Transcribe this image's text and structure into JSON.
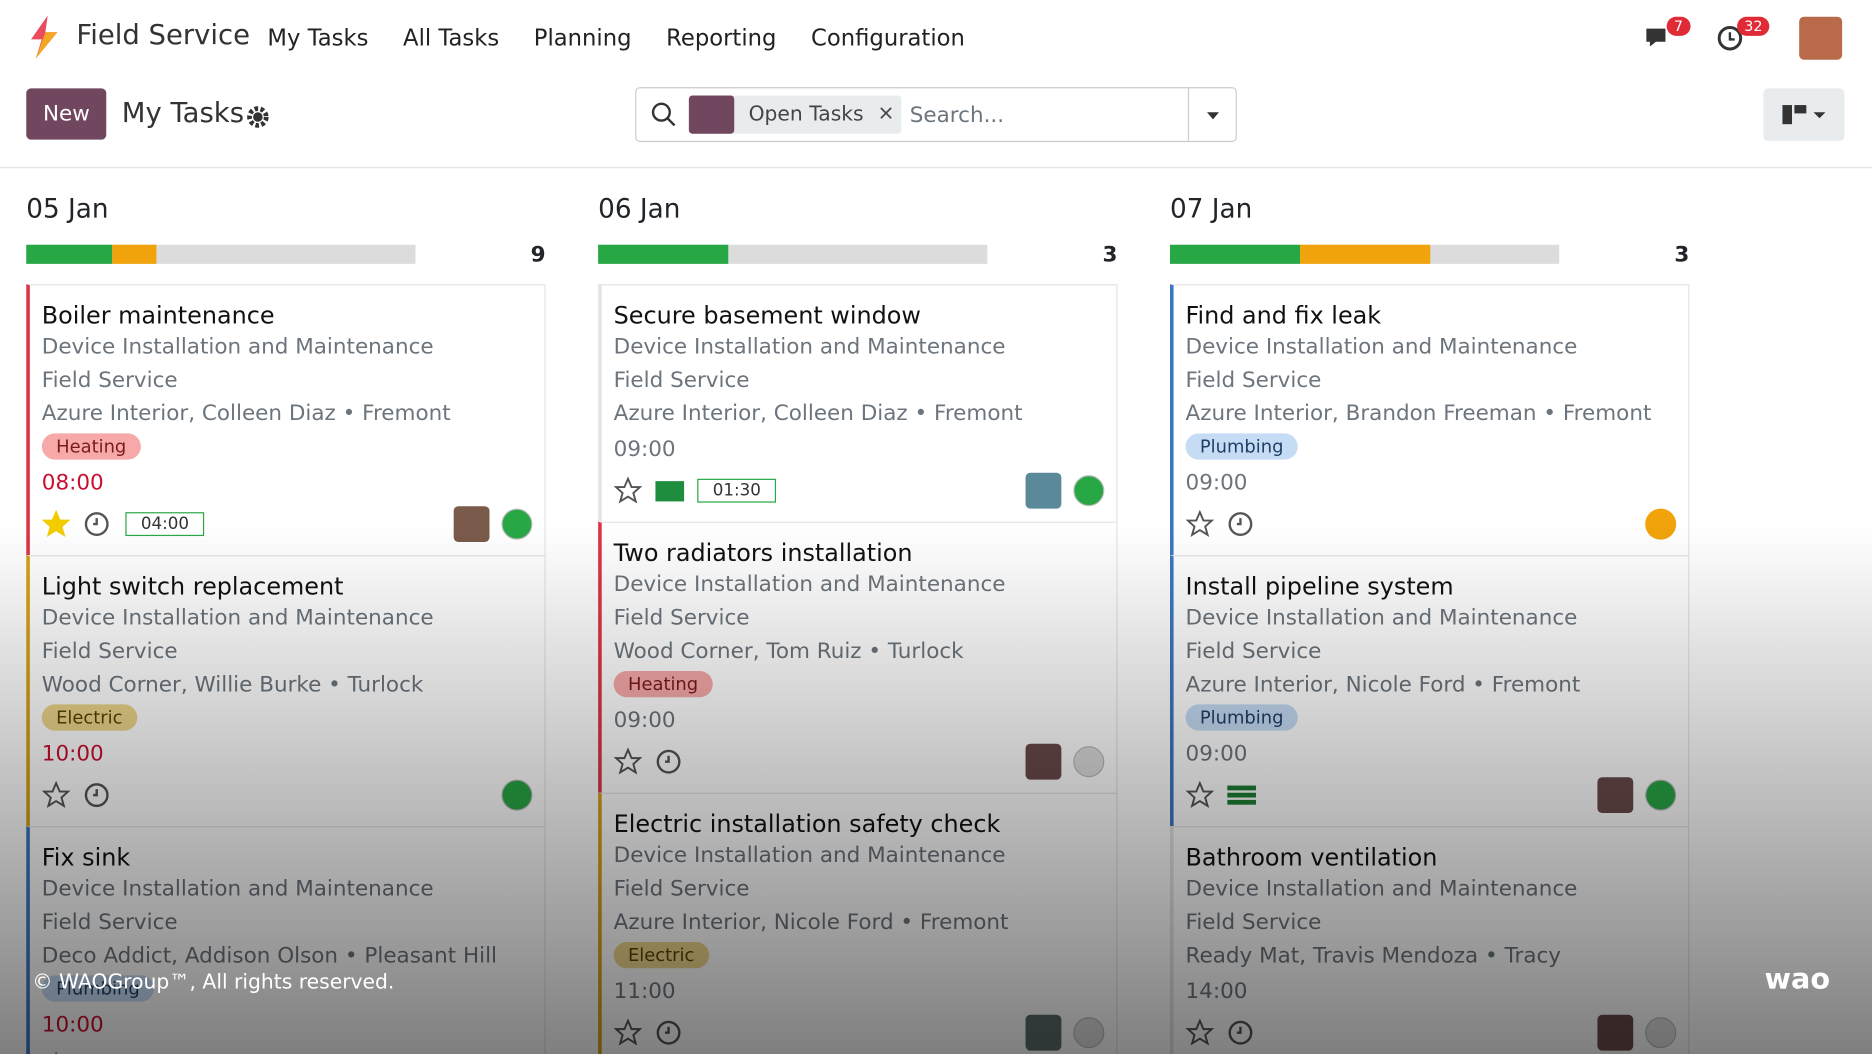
{
  "header": {
    "app": "Field Service",
    "menu": [
      "My Tasks",
      "All Tasks",
      "Planning",
      "Reporting",
      "Configuration"
    ],
    "messages_badge": 7,
    "activities_badge": 32
  },
  "control_panel": {
    "new_button": "New",
    "breadcrumb": "My Tasks",
    "facet": "Open Tasks",
    "search_placeholder": "Search..."
  },
  "columns": [
    {
      "title": "05 Jan",
      "count": 9,
      "cards": [
        {
          "title": "Boiler maintenance",
          "project": "Device Installation and Maintenance",
          "company": "Field Service",
          "customer": "Azure Interior, Colleen Diaz • Fremont",
          "tag": "Heating",
          "time": "08:00",
          "timer": "04:00"
        },
        {
          "title": "Light switch replacement",
          "project": "Device Installation and Maintenance",
          "company": "Field Service",
          "customer": "Wood Corner, Willie Burke • Turlock",
          "tag": "Electric",
          "time": "10:00"
        },
        {
          "title": "Fix sink",
          "project": "Device Installation and Maintenance",
          "company": "Field Service",
          "customer": "Deco Addict, Addison Olson • Pleasant Hill",
          "tag": "Plumbing",
          "time": "10:00"
        }
      ]
    },
    {
      "title": "06 Jan",
      "count": 3,
      "cards": [
        {
          "title": "Secure basement window",
          "project": "Device Installation and Maintenance",
          "company": "Field Service",
          "customer": "Azure Interior, Colleen Diaz • Fremont",
          "time": "09:00",
          "timer": "01:30"
        },
        {
          "title": "Two radiators installation",
          "project": "Device Installation and Maintenance",
          "company": "Field Service",
          "customer": "Wood Corner, Tom Ruiz • Turlock",
          "tag": "Heating",
          "time": "09:00"
        },
        {
          "title": "Electric installation safety check",
          "project": "Device Installation and Maintenance",
          "company": "Field Service",
          "customer": "Azure Interior, Nicole Ford • Fremont",
          "tag": "Electric",
          "time": "11:00"
        }
      ]
    },
    {
      "title": "07 Jan",
      "count": 3,
      "cards": [
        {
          "title": "Find and fix leak",
          "project": "Device Installation and Maintenance",
          "company": "Field Service",
          "customer": "Azure Interior, Brandon Freeman • Fremont",
          "tag": "Plumbing",
          "time": "09:00"
        },
        {
          "title": "Install pipeline system",
          "project": "Device Installation and Maintenance",
          "company": "Field Service",
          "customer": "Azure Interior, Nicole Ford • Fremont",
          "tag": "Plumbing",
          "time": "09:00"
        },
        {
          "title": "Bathroom ventilation",
          "project": "Device Installation and Maintenance",
          "company": "Field Service",
          "customer": "Ready Mat, Travis Mendoza • Tracy",
          "time": "14:00"
        }
      ]
    }
  ],
  "footer": {
    "copyright": "© WAOGroup™, All rights reserved.",
    "brand": "wao"
  }
}
